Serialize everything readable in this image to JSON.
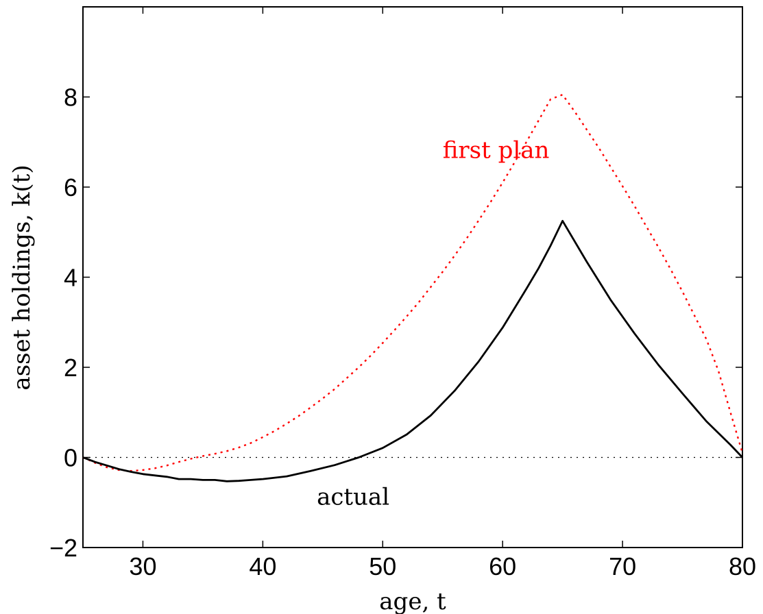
{
  "chart_data": {
    "type": "line",
    "title": "",
    "xlabel": "age, t",
    "ylabel": "asset holdings, k(t)",
    "xlim": [
      25,
      80
    ],
    "ylim": [
      -2,
      10
    ],
    "xticks": [
      30,
      40,
      50,
      60,
      70,
      80
    ],
    "yticks": [
      -2,
      0,
      2,
      4,
      6,
      8
    ],
    "ytick_labels": [
      "−2",
      "0",
      "2",
      "4",
      "6",
      "8"
    ],
    "grid": false,
    "reference_line": {
      "y": 0,
      "style": "dotted",
      "color": "#000000"
    },
    "series": [
      {
        "name": "first plan",
        "color": "#ff0000",
        "style": "dotted",
        "x": [
          25,
          26,
          27,
          28,
          29,
          30,
          31,
          32,
          33,
          34,
          35,
          36,
          37,
          38,
          39,
          40,
          41,
          42,
          43,
          44,
          45,
          46,
          47,
          48,
          49,
          50,
          51,
          52,
          53,
          54,
          55,
          56,
          57,
          58,
          59,
          60,
          61,
          62,
          63,
          64,
          65,
          66,
          67,
          68,
          69,
          70,
          71,
          72,
          73,
          74,
          75,
          76,
          77,
          78,
          79,
          80
        ],
        "values": [
          0.0,
          -0.12,
          -0.22,
          -0.28,
          -0.3,
          -0.28,
          -0.24,
          -0.18,
          -0.1,
          -0.03,
          0.03,
          0.08,
          0.14,
          0.22,
          0.32,
          0.45,
          0.59,
          0.75,
          0.92,
          1.11,
          1.31,
          1.52,
          1.76,
          2.0,
          2.26,
          2.54,
          2.83,
          3.13,
          3.44,
          3.78,
          4.12,
          4.48,
          4.86,
          5.26,
          5.67,
          6.1,
          6.55,
          7.01,
          7.48,
          7.95,
          8.05,
          7.68,
          7.28,
          6.88,
          6.45,
          6.02,
          5.58,
          5.12,
          4.66,
          4.18,
          3.68,
          3.15,
          2.62,
          1.92,
          1.0,
          0.1
        ]
      },
      {
        "name": "actual",
        "color": "#000000",
        "style": "solid",
        "x": [
          25,
          26,
          27,
          28,
          29,
          30,
          31,
          32,
          33,
          34,
          35,
          36,
          37,
          38,
          39,
          40,
          42,
          44,
          46,
          48,
          50,
          52,
          54,
          56,
          58,
          60,
          62,
          63,
          64,
          65,
          67,
          69,
          71,
          73,
          75,
          77,
          79,
          80
        ],
        "values": [
          0.0,
          -0.1,
          -0.18,
          -0.26,
          -0.32,
          -0.37,
          -0.4,
          -0.43,
          -0.48,
          -0.48,
          -0.5,
          -0.5,
          -0.53,
          -0.52,
          -0.5,
          -0.48,
          -0.42,
          -0.3,
          -0.17,
          0.0,
          0.21,
          0.51,
          0.93,
          1.48,
          2.13,
          2.88,
          3.75,
          4.2,
          4.7,
          5.25,
          4.35,
          3.5,
          2.75,
          2.05,
          1.42,
          0.8,
          0.28,
          0.0
        ]
      }
    ],
    "annotations": [
      {
        "text": "first plan",
        "x": 55,
        "y": 6.65,
        "color": "#ff0000"
      },
      {
        "text": "actual",
        "x": 44.5,
        "y": -1.05,
        "color": "#000000"
      }
    ]
  }
}
